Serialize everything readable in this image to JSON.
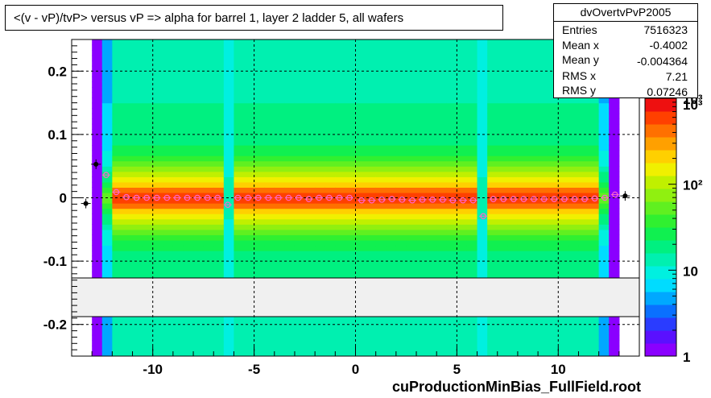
{
  "chart_data": {
    "type": "heatmap",
    "title": "<(v - vP)/tvP> versus   vP => alpha for barrel 1, layer 2 ladder 5, all wafers",
    "xlabel": "",
    "ylabel": "",
    "xlim": [
      -14,
      14
    ],
    "ylim": [
      -0.25,
      0.25
    ],
    "x_ticks": [
      -10,
      -5,
      0,
      5,
      10
    ],
    "x_tick_labels": [
      "-10",
      "-5",
      "0",
      "5",
      "10"
    ],
    "y_ticks": [
      -0.2,
      -0.1,
      0,
      0.1,
      0.2
    ],
    "y_tick_labels": [
      "-0.2",
      "-0.1",
      "0",
      "0.1",
      "0.2"
    ],
    "grid": true,
    "z_scale": "log",
    "z_ticks": [
      1,
      10,
      100,
      1000
    ],
    "z_tick_labels": [
      "1",
      "10",
      "10²",
      "10³"
    ],
    "excluded_y_band": [
      -0.188,
      -0.125
    ],
    "profile": {
      "x": [
        -13.3,
        -12.8,
        -12.3,
        -11.8,
        -11.3,
        -10.8,
        -10.3,
        -9.8,
        -9.3,
        -8.8,
        -8.3,
        -7.8,
        -7.3,
        -6.8,
        -6.3,
        -5.8,
        -5.3,
        -4.8,
        -4.3,
        -3.8,
        -3.3,
        -2.8,
        -2.3,
        -1.8,
        -1.3,
        -0.8,
        -0.3,
        0.3,
        0.8,
        1.3,
        1.8,
        2.3,
        2.8,
        3.3,
        3.8,
        4.3,
        4.8,
        5.3,
        5.8,
        6.3,
        6.8,
        7.3,
        7.8,
        8.3,
        8.8,
        9.3,
        9.8,
        10.3,
        10.8,
        11.3,
        11.8,
        12.3,
        12.8,
        13.3
      ],
      "y": [
        -0.009,
        0.053,
        0.036,
        0.009,
        0.001,
        0.0,
        0.0,
        0.0,
        0.0,
        0.0,
        0.0,
        0.0,
        0.0,
        0.0,
        -0.011,
        0.0,
        0.0,
        0.0,
        0.0,
        0.0,
        0.0,
        0.0,
        -0.002,
        0.0,
        0.0,
        0.0,
        0.0,
        -0.004,
        -0.004,
        -0.003,
        -0.002,
        -0.003,
        -0.004,
        -0.003,
        -0.003,
        -0.003,
        -0.004,
        -0.004,
        -0.004,
        -0.029,
        -0.002,
        -0.002,
        -0.002,
        -0.002,
        -0.002,
        -0.002,
        -0.002,
        -0.002,
        -0.002,
        -0.002,
        -0.001,
        0.0,
        0.005,
        0.003
      ]
    },
    "legend": "top-right"
  },
  "stats": {
    "name": "dvOvertvPvP2005",
    "rows": [
      {
        "label": "Entries",
        "value": "7516323"
      },
      {
        "label": "Mean x",
        "value": "-0.4002"
      },
      {
        "label": "Mean y",
        "value": "-0.004364"
      },
      {
        "label": "RMS x",
        "value": "7.21"
      },
      {
        "label": "RMS y",
        "value": "0.07246"
      }
    ]
  },
  "footer": "cuProductionMinBias_FullField.root",
  "colors": {
    "frame": "#000000",
    "band": "#f0f0f0",
    "grid": "#000000",
    "marker_pink": "#ff66cc",
    "marker_black": "#000000"
  }
}
